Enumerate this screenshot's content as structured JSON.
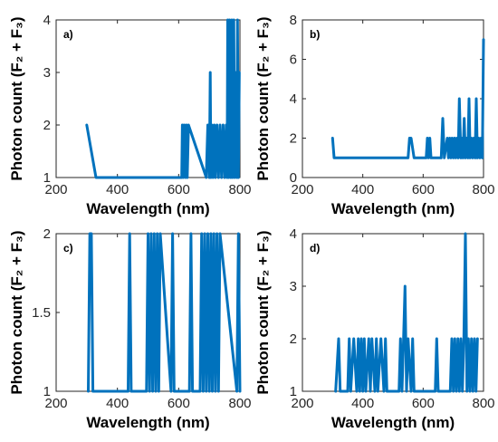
{
  "chart_data": [
    {
      "type": "line",
      "panel_label": "a)",
      "xlabel": "Wavelength (nm)",
      "ylabel": "Photon count (F₂ + F₃)",
      "xlim": [
        200,
        800
      ],
      "ylim": [
        1,
        4
      ],
      "xticks": [
        200,
        400,
        600,
        800
      ],
      "yticks": [
        1,
        2,
        3,
        4
      ],
      "color": "#0072BD",
      "x": [
        300,
        330,
        610,
        612,
        615,
        618,
        622,
        625,
        628,
        632,
        690,
        695,
        700,
        703,
        705,
        708,
        712,
        716,
        720,
        725,
        730,
        735,
        740,
        745,
        750,
        755,
        758,
        760,
        763,
        766,
        770,
        773,
        776,
        780,
        783,
        786,
        790,
        792,
        795,
        798
      ],
      "y": [
        2,
        1,
        1,
        2,
        1,
        2,
        1,
        2,
        1,
        2,
        1,
        2,
        1,
        3,
        1,
        2,
        1,
        2,
        1,
        2,
        1,
        2,
        1,
        2,
        1,
        2,
        1,
        4,
        1,
        4,
        1,
        4,
        1,
        4,
        1,
        3,
        1,
        4,
        1,
        3
      ]
    },
    {
      "type": "line",
      "panel_label": "b)",
      "xlabel": "Wavelength (nm)",
      "ylabel": "Photon count (F₂ + F₃)",
      "xlim": [
        200,
        800
      ],
      "ylim": [
        0,
        8
      ],
      "xticks": [
        200,
        400,
        600,
        800
      ],
      "yticks": [
        0,
        2,
        4,
        6,
        8
      ],
      "color": "#0072BD",
      "x": [
        300,
        305,
        550,
        555,
        560,
        570,
        610,
        614,
        618,
        622,
        626,
        660,
        665,
        670,
        680,
        684,
        688,
        692,
        696,
        700,
        704,
        708,
        712,
        716,
        720,
        725,
        728,
        732,
        736,
        740,
        744,
        748,
        752,
        756,
        760,
        764,
        768,
        772,
        776,
        780,
        784,
        788,
        792,
        796,
        800
      ],
      "y": [
        2,
        1,
        1,
        2,
        2,
        1,
        1,
        2,
        1,
        2,
        1,
        1,
        3,
        1,
        2,
        1,
        2,
        1,
        2,
        1,
        2,
        1,
        2,
        1,
        4,
        1,
        2,
        1,
        3,
        1,
        2,
        1,
        4,
        1,
        2,
        1,
        2,
        1,
        4,
        1,
        2,
        1,
        2,
        1,
        7
      ]
    },
    {
      "type": "line",
      "panel_label": "c)",
      "xlabel": "Wavelength (nm)",
      "ylabel": "Photon count (F₂ + F₃)",
      "xlim": [
        200,
        800
      ],
      "ylim": [
        1,
        2
      ],
      "xticks": [
        200,
        400,
        600,
        800
      ],
      "yticks": [
        1,
        1.5,
        2
      ],
      "color": "#0072BD",
      "x": [
        305,
        310,
        315,
        320,
        435,
        440,
        445,
        495,
        500,
        505,
        510,
        515,
        520,
        525,
        530,
        535,
        540,
        575,
        580,
        585,
        635,
        640,
        645,
        670,
        675,
        680,
        685,
        690,
        695,
        700,
        705,
        710,
        715,
        720,
        725,
        730,
        735,
        790,
        795,
        800
      ],
      "y": [
        1,
        2,
        2,
        1,
        1,
        2,
        1,
        1,
        2,
        1,
        2,
        1,
        2,
        1,
        2,
        1,
        2,
        1,
        2,
        1,
        1,
        2,
        1,
        1,
        2,
        1,
        2,
        1,
        2,
        1,
        2,
        1,
        2,
        1,
        2,
        1,
        2,
        1,
        2,
        1
      ]
    },
    {
      "type": "line",
      "panel_label": "d)",
      "xlabel": "Wavelength (nm)",
      "ylabel": "Photon count (F₂ + F₃)",
      "xlim": [
        200,
        800
      ],
      "ylim": [
        1,
        4
      ],
      "xticks": [
        200,
        400,
        600,
        800
      ],
      "yticks": [
        1,
        2,
        3,
        4
      ],
      "color": "#0072BD",
      "x": [
        310,
        320,
        325,
        350,
        355,
        360,
        370,
        380,
        385,
        390,
        395,
        400,
        405,
        410,
        420,
        425,
        430,
        440,
        445,
        450,
        460,
        470,
        475,
        480,
        520,
        525,
        530,
        535,
        540,
        545,
        550,
        560,
        565,
        570,
        640,
        645,
        650,
        690,
        695,
        700,
        705,
        710,
        715,
        720,
        725,
        730,
        735,
        740,
        745,
        750,
        755,
        760,
        765,
        770,
        775,
        780
      ],
      "y": [
        1,
        2,
        1,
        1,
        2,
        1,
        2,
        1,
        2,
        1,
        2,
        1,
        2,
        1,
        2,
        1,
        2,
        1,
        2,
        1,
        2,
        1,
        2,
        1,
        1,
        2,
        1,
        2,
        3,
        1,
        2,
        1,
        2,
        1,
        1,
        2,
        1,
        1,
        2,
        1,
        2,
        1,
        2,
        1,
        2,
        1,
        2,
        4,
        1,
        2,
        1,
        2,
        1,
        2,
        1,
        2
      ]
    }
  ]
}
